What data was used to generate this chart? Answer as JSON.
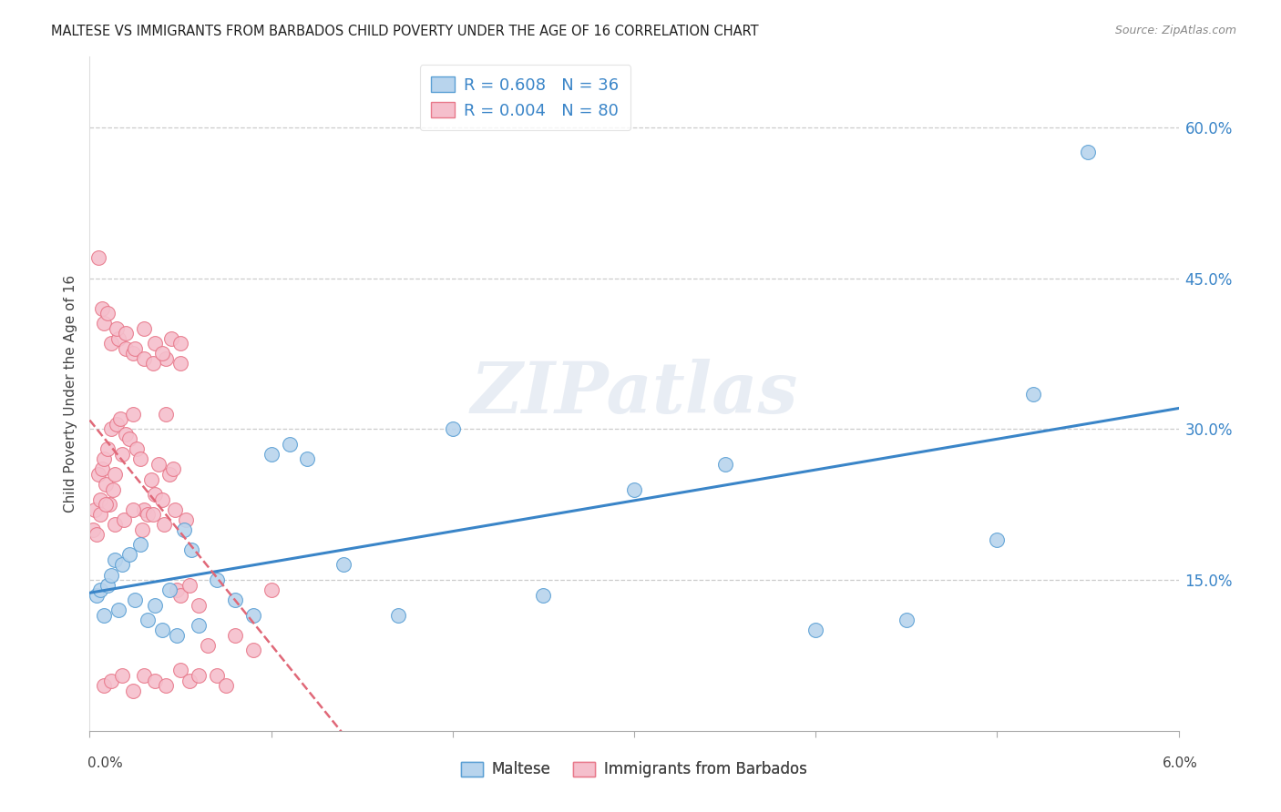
{
  "title": "MALTESE VS IMMIGRANTS FROM BARBADOS CHILD POVERTY UNDER THE AGE OF 16 CORRELATION CHART",
  "source": "Source: ZipAtlas.com",
  "ylabel": "Child Poverty Under the Age of 16",
  "xmin": 0.0,
  "xmax": 6.0,
  "ymin": 0.0,
  "ymax": 67.0,
  "ytick_vals": [
    15.0,
    30.0,
    45.0,
    60.0
  ],
  "ytick_labels": [
    "15.0%",
    "30.0%",
    "45.0%",
    "60.0%"
  ],
  "maltese_color": "#b8d4ed",
  "barbados_color": "#f5bfcc",
  "maltese_edge": "#5a9fd4",
  "barbados_edge": "#e8788a",
  "maltese_line": "#3a85c8",
  "barbados_line": "#e06878",
  "legend_R_maltese": "R = 0.608",
  "legend_N_maltese": "N = 36",
  "legend_R_barbados": "R = 0.004",
  "legend_N_barbados": "N = 80",
  "watermark": "ZIPatlas",
  "maltese_x": [
    0.04,
    0.06,
    0.08,
    0.1,
    0.12,
    0.14,
    0.16,
    0.18,
    0.22,
    0.25,
    0.28,
    0.32,
    0.36,
    0.4,
    0.44,
    0.48,
    0.52,
    0.56,
    0.6,
    0.7,
    0.8,
    0.9,
    1.0,
    1.1,
    1.2,
    1.4,
    1.7,
    2.0,
    2.5,
    3.0,
    3.5,
    4.0,
    4.5,
    5.0,
    5.2,
    5.5
  ],
  "maltese_y": [
    13.5,
    14.0,
    11.5,
    14.5,
    15.5,
    17.0,
    12.0,
    16.5,
    17.5,
    13.0,
    18.5,
    11.0,
    12.5,
    10.0,
    14.0,
    9.5,
    20.0,
    18.0,
    10.5,
    15.0,
    13.0,
    11.5,
    27.5,
    28.5,
    27.0,
    16.5,
    11.5,
    30.0,
    13.5,
    24.0,
    26.5,
    10.0,
    11.0,
    19.0,
    33.5,
    57.5
  ],
  "barbados_x": [
    0.02,
    0.03,
    0.04,
    0.05,
    0.06,
    0.07,
    0.08,
    0.09,
    0.1,
    0.11,
    0.12,
    0.13,
    0.14,
    0.15,
    0.17,
    0.18,
    0.2,
    0.22,
    0.24,
    0.26,
    0.28,
    0.3,
    0.32,
    0.34,
    0.36,
    0.38,
    0.4,
    0.42,
    0.44,
    0.46,
    0.48,
    0.5,
    0.55,
    0.6,
    0.65,
    0.7,
    0.75,
    0.8,
    0.9,
    1.0,
    0.05,
    0.08,
    0.12,
    0.16,
    0.2,
    0.24,
    0.3,
    0.36,
    0.42,
    0.5,
    0.07,
    0.1,
    0.15,
    0.2,
    0.25,
    0.3,
    0.35,
    0.4,
    0.45,
    0.5,
    0.06,
    0.09,
    0.14,
    0.19,
    0.24,
    0.29,
    0.35,
    0.41,
    0.47,
    0.53,
    0.08,
    0.12,
    0.18,
    0.24,
    0.3,
    0.36,
    0.42,
    0.5,
    0.55,
    0.6
  ],
  "barbados_y": [
    20.0,
    22.0,
    19.5,
    25.5,
    23.0,
    26.0,
    27.0,
    24.5,
    28.0,
    22.5,
    30.0,
    24.0,
    25.5,
    30.5,
    31.0,
    27.5,
    29.5,
    29.0,
    31.5,
    28.0,
    27.0,
    22.0,
    21.5,
    25.0,
    23.5,
    26.5,
    23.0,
    31.5,
    25.5,
    26.0,
    14.0,
    13.5,
    14.5,
    12.5,
    8.5,
    5.5,
    4.5,
    9.5,
    8.0,
    14.0,
    47.0,
    40.5,
    38.5,
    39.0,
    38.0,
    37.5,
    40.0,
    38.5,
    37.0,
    36.5,
    42.0,
    41.5,
    40.0,
    39.5,
    38.0,
    37.0,
    36.5,
    37.5,
    39.0,
    38.5,
    21.5,
    22.5,
    20.5,
    21.0,
    22.0,
    20.0,
    21.5,
    20.5,
    22.0,
    21.0,
    4.5,
    5.0,
    5.5,
    4.0,
    5.5,
    5.0,
    4.5,
    6.0,
    5.0,
    5.5
  ]
}
